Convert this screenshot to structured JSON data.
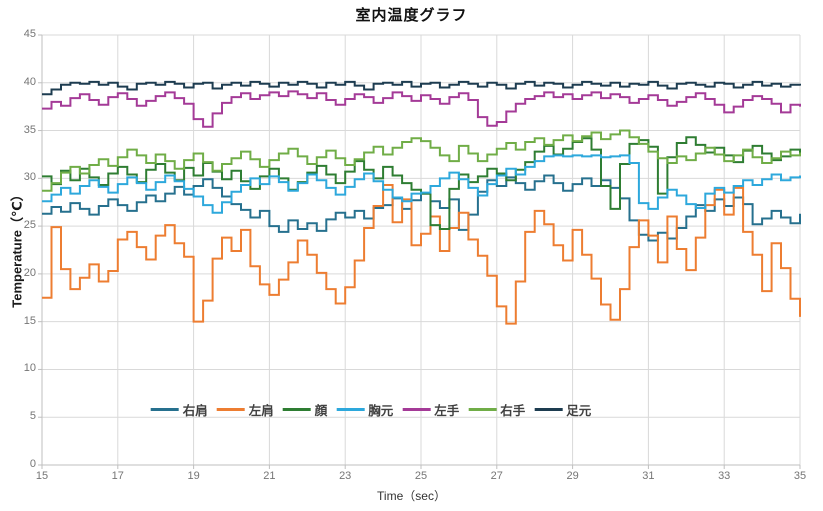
{
  "style": {
    "background": "#ffffff",
    "grid_color": "#d9d9d9",
    "axis_color": "#bfbfbf",
    "tick_label_color": "#757575",
    "title_color": "#111111",
    "axis_title_color": "#333333",
    "legend_text_color": "#404040"
  },
  "chart_data": {
    "type": "line",
    "line_style": "step-after",
    "title": "室内温度グラフ",
    "xlabel": "Time（sec）",
    "ylabel": "Temperature（℃）",
    "xlim": [
      15,
      35
    ],
    "ylim": [
      0,
      45
    ],
    "x_ticks": [
      15,
      17,
      19,
      21,
      23,
      25,
      27,
      29,
      31,
      33,
      35
    ],
    "y_ticks": [
      0,
      5,
      10,
      15,
      20,
      25,
      30,
      35,
      40,
      45
    ],
    "grid": true,
    "legend_position": "bottom-center-inside",
    "x_start": 15,
    "x_step": 0.25,
    "series": [
      {
        "name": "右肩",
        "color": "#26708e",
        "values": [
          26.3,
          27.0,
          26.5,
          27.4,
          26.8,
          26.2,
          27.1,
          27.8,
          27.2,
          26.6,
          27.5,
          28.2,
          27.6,
          28.4,
          29.1,
          28.3,
          29.2,
          29.9,
          29.0,
          28.1,
          27.3,
          26.7,
          25.9,
          26.6,
          25.0,
          24.4,
          25.6,
          24.7,
          25.3,
          24.5,
          25.7,
          26.4,
          25.9,
          26.6,
          25.8,
          26.9,
          27.2,
          27.9,
          26.8,
          27.7,
          28.4,
          27.6,
          26.9,
          27.8,
          24.6,
          26.2,
          28.6,
          29.8,
          29.2,
          30.1,
          29.5,
          28.8,
          29.7,
          30.3,
          29.5,
          28.7,
          29.4,
          30.0,
          29.2,
          29.8,
          29.0,
          27.9,
          25.6,
          24.1,
          23.5,
          24.3,
          23.7,
          24.8,
          26.0,
          27.2,
          26.6,
          27.8,
          27.1,
          28.0,
          27.3,
          25.2,
          25.8,
          26.6,
          25.9,
          25.3,
          26.3
        ]
      },
      {
        "name": "左肩",
        "color": "#ed7d31",
        "values": [
          17.5,
          24.9,
          20.5,
          18.4,
          19.6,
          21.0,
          19.2,
          20.3,
          23.6,
          24.4,
          22.8,
          21.5,
          24.0,
          25.1,
          23.2,
          21.8,
          15.0,
          17.2,
          21.6,
          23.8,
          22.4,
          24.6,
          20.8,
          18.9,
          17.8,
          19.4,
          21.2,
          23.5,
          22.0,
          20.1,
          18.4,
          16.9,
          18.6,
          21.4,
          24.8,
          27.1,
          29.3,
          25.4,
          27.8,
          23.0,
          24.2,
          26.0,
          22.4,
          24.8,
          26.4,
          23.6,
          21.9,
          19.8,
          16.6,
          14.8,
          19.2,
          24.4,
          26.6,
          25.2,
          23.0,
          21.4,
          24.6,
          22.0,
          19.5,
          16.8,
          15.2,
          18.4,
          22.8,
          25.6,
          24.0,
          21.2,
          26.0,
          22.6,
          20.4,
          23.8,
          27.2,
          28.8,
          26.2,
          29.0,
          24.4,
          22.0,
          18.2,
          23.2,
          20.6,
          17.4,
          15.5
        ]
      },
      {
        "name": "顔",
        "color": "#2e7d32",
        "values": [
          30.2,
          29.4,
          30.8,
          29.8,
          31.0,
          30.1,
          29.3,
          30.5,
          31.2,
          30.4,
          29.6,
          30.9,
          31.5,
          30.6,
          29.8,
          31.1,
          30.3,
          31.6,
          30.7,
          29.9,
          30.8,
          29.7,
          28.9,
          30.2,
          31.0,
          30.0,
          28.8,
          29.6,
          30.6,
          31.3,
          30.4,
          29.5,
          30.7,
          31.8,
          30.9,
          30.0,
          31.2,
          30.3,
          29.5,
          28.8,
          28.4,
          25.1,
          24.7,
          28.9,
          30.4,
          29.6,
          30.2,
          31.0,
          30.5,
          29.8,
          30.9,
          31.7,
          32.8,
          33.4,
          32.5,
          33.1,
          33.8,
          34.2,
          33.0,
          29.2,
          26.8,
          31.5,
          33.6,
          34.0,
          33.3,
          28.4,
          32.2,
          33.7,
          34.3,
          33.5,
          32.7,
          33.2,
          32.4,
          31.7,
          32.9,
          33.4,
          32.6,
          31.9,
          32.3,
          33.0,
          32.6
        ]
      },
      {
        "name": "胸元",
        "color": "#2da8dc",
        "values": [
          27.6,
          28.3,
          29.0,
          28.4,
          29.2,
          29.8,
          29.1,
          28.5,
          29.4,
          30.1,
          29.5,
          28.8,
          29.6,
          30.3,
          29.7,
          28.9,
          28.1,
          27.2,
          26.4,
          27.5,
          28.6,
          29.3,
          30.0,
          29.4,
          30.2,
          29.6,
          28.7,
          29.5,
          30.4,
          29.8,
          29.0,
          28.3,
          29.1,
          29.9,
          30.5,
          29.7,
          28.8,
          28.0,
          27.6,
          28.4,
          28.5,
          29.2,
          30.0,
          30.6,
          29.9,
          29.0,
          28.2,
          29.4,
          30.3,
          31.0,
          30.4,
          31.2,
          31.8,
          32.3,
          32.4,
          32.3,
          32.4,
          32.3,
          32.4,
          32.2,
          32.3,
          32.4,
          31.6,
          27.4,
          26.8,
          28.0,
          28.8,
          28.2,
          27.3,
          26.9,
          28.4,
          29.0,
          28.5,
          29.2,
          29.8,
          29.3,
          29.9,
          30.4,
          29.8,
          30.1,
          30.3
        ]
      },
      {
        "name": "左手",
        "color": "#a43a97",
        "values": [
          37.3,
          38.0,
          37.6,
          38.4,
          38.8,
          38.2,
          37.7,
          38.5,
          38.9,
          38.3,
          37.6,
          38.1,
          38.6,
          39.0,
          38.4,
          37.8,
          36.2,
          35.4,
          36.8,
          37.9,
          38.5,
          38.9,
          38.3,
          38.7,
          39.0,
          38.6,
          39.1,
          38.8,
          38.4,
          38.9,
          38.2,
          37.7,
          38.3,
          38.8,
          38.5,
          37.9,
          38.4,
          39.0,
          38.6,
          38.1,
          38.7,
          38.3,
          37.8,
          38.5,
          38.9,
          38.2,
          36.4,
          35.5,
          35.9,
          37.0,
          37.8,
          38.3,
          38.6,
          39.0,
          38.5,
          38.8,
          38.3,
          38.7,
          39.0,
          38.4,
          38.8,
          38.5,
          37.9,
          38.3,
          38.7,
          38.2,
          37.6,
          38.0,
          38.5,
          38.9,
          38.3,
          37.7,
          36.9,
          37.5,
          38.2,
          38.6,
          38.3,
          37.8,
          36.9,
          37.7,
          37.5
        ]
      },
      {
        "name": "右手",
        "color": "#70ad47",
        "values": [
          28.7,
          29.5,
          30.6,
          31.2,
          30.5,
          31.4,
          32.0,
          31.3,
          32.2,
          33.0,
          32.4,
          31.6,
          32.5,
          31.8,
          31.0,
          31.9,
          32.6,
          31.7,
          30.8,
          31.5,
          32.1,
          32.8,
          32.0,
          31.2,
          31.9,
          32.6,
          33.1,
          32.3,
          31.5,
          32.2,
          32.9,
          32.1,
          31.4,
          32.0,
          32.7,
          33.3,
          32.5,
          33.2,
          33.8,
          34.2,
          33.9,
          33.2,
          32.4,
          31.8,
          33.4,
          32.6,
          31.8,
          32.5,
          33.1,
          33.7,
          33.0,
          33.8,
          34.2,
          33.5,
          34.0,
          34.5,
          33.9,
          34.4,
          34.8,
          34.1,
          34.6,
          35.0,
          34.3,
          33.6,
          32.8,
          32.1,
          31.6,
          32.3,
          31.9,
          32.6,
          33.2,
          32.5,
          31.8,
          32.4,
          33.0,
          32.2,
          31.6,
          32.1,
          32.8,
          32.4,
          32.7
        ]
      },
      {
        "name": "足元",
        "color": "#1d3c50",
        "values": [
          38.8,
          39.3,
          39.8,
          40.0,
          39.9,
          40.1,
          39.8,
          40.0,
          39.6,
          39.3,
          39.9,
          40.0,
          39.8,
          40.1,
          39.9,
          39.5,
          39.9,
          40.0,
          39.4,
          39.8,
          40.0,
          39.7,
          40.1,
          39.9,
          39.6,
          40.0,
          39.8,
          40.1,
          39.9,
          39.5,
          40.0,
          39.8,
          40.1,
          39.7,
          39.3,
          39.9,
          40.0,
          39.8,
          40.1,
          39.6,
          39.9,
          40.0,
          39.5,
          39.8,
          40.1,
          39.9,
          39.6,
          40.0,
          39.8,
          39.4,
          39.9,
          40.1,
          39.7,
          40.0,
          39.9,
          39.5,
          39.8,
          40.1,
          39.9,
          39.7,
          40.0,
          39.6,
          39.9,
          39.8,
          40.1,
          39.7,
          39.4,
          39.9,
          40.0,
          39.8,
          39.6,
          40.0,
          39.9,
          39.5,
          39.8,
          40.1,
          39.7,
          39.9,
          39.6,
          39.8,
          39.7
        ]
      }
    ]
  }
}
